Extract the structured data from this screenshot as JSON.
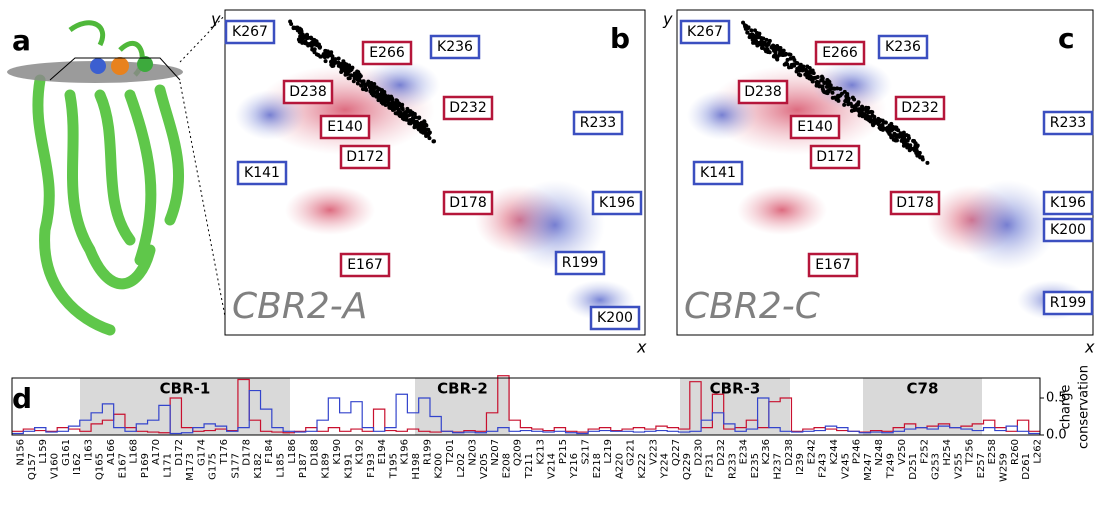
{
  "panel_a": {
    "label": "a"
  },
  "panel_b": {
    "label": "b",
    "name": "CBR2-A",
    "x_label": "x",
    "y_label": "y",
    "residues": [
      {
        "label": "K267",
        "color": "#3b4fc0"
      },
      {
        "label": "E266",
        "color": "#b5163a"
      },
      {
        "label": "K236",
        "color": "#3b4fc0"
      },
      {
        "label": "D238",
        "color": "#b5163a"
      },
      {
        "label": "D232",
        "color": "#b5163a"
      },
      {
        "label": "R233",
        "color": "#3b4fc0"
      },
      {
        "label": "E140",
        "color": "#b5163a"
      },
      {
        "label": "D172",
        "color": "#b5163a"
      },
      {
        "label": "K141",
        "color": "#3b4fc0"
      },
      {
        "label": "D178",
        "color": "#b5163a"
      },
      {
        "label": "K196",
        "color": "#3b4fc0"
      },
      {
        "label": "R199",
        "color": "#3b4fc0"
      },
      {
        "label": "E167",
        "color": "#b5163a"
      },
      {
        "label": "K200",
        "color": "#3b4fc0"
      }
    ]
  },
  "panel_c": {
    "label": "c",
    "name": "CBR2-C",
    "x_label": "x",
    "y_label": "y",
    "residues": [
      {
        "label": "K267",
        "color": "#3b4fc0"
      },
      {
        "label": "E266",
        "color": "#b5163a"
      },
      {
        "label": "K236",
        "color": "#3b4fc0"
      },
      {
        "label": "D238",
        "color": "#b5163a"
      },
      {
        "label": "D232",
        "color": "#b5163a"
      },
      {
        "label": "R233",
        "color": "#3b4fc0"
      },
      {
        "label": "E140",
        "color": "#b5163a"
      },
      {
        "label": "D172",
        "color": "#b5163a"
      },
      {
        "label": "K141",
        "color": "#3b4fc0"
      },
      {
        "label": "D178",
        "color": "#b5163a"
      },
      {
        "label": "K196",
        "color": "#3b4fc0"
      },
      {
        "label": "K200",
        "color": "#3b4fc0"
      },
      {
        "label": "E167",
        "color": "#b5163a"
      },
      {
        "label": "R199",
        "color": "#3b4fc0"
      }
    ]
  },
  "panel_d": {
    "label": "d",
    "regions": [
      "CBR-1",
      "CBR-2",
      "CBR-3",
      "C78"
    ],
    "y_label": [
      "charge",
      "conservation"
    ],
    "ylim": [
      0,
      0.77
    ],
    "yticks": [
      {
        "value": 0,
        "label": "0.0"
      },
      0.5
    ],
    "residues": [
      "N156",
      "Q157",
      "L159",
      "V160",
      "G161",
      "I162",
      "I163",
      "Q165",
      "A166",
      "E167",
      "L168",
      "P169",
      "A170",
      "L171",
      "D172",
      "M173",
      "G174",
      "G175",
      "T176",
      "S177",
      "D178",
      "K182",
      "F184",
      "L185",
      "L186",
      "P187",
      "D188",
      "K189",
      "K190",
      "K191",
      "K192",
      "F193",
      "E194",
      "T195",
      "K196",
      "H198",
      "R199",
      "K200",
      "T201",
      "L202",
      "N203",
      "V205",
      "N207",
      "E208",
      "Q209",
      "T211",
      "K213",
      "V214",
      "P215",
      "Y216",
      "S217",
      "E218",
      "L219",
      "A220",
      "G221",
      "K222",
      "V223",
      "Y224",
      "Q227",
      "Q229",
      "D230",
      "F231",
      "D232",
      "R233",
      "E234",
      "E235",
      "K236",
      "H237",
      "D238",
      "I239",
      "E242",
      "F243",
      "K244",
      "V245",
      "P246",
      "M247",
      "N248",
      "T249",
      "V250",
      "D251",
      "F252",
      "G253",
      "H254",
      "V255",
      "T256",
      "E257",
      "E258",
      "W259",
      "R260",
      "D261",
      "L262"
    ],
    "series": [
      {
        "color": "#c8102e",
        "values": [
          0.05,
          0.08,
          0.06,
          0.05,
          0.1,
          0.08,
          0.05,
          0.15,
          0.2,
          0.28,
          0.1,
          0.05,
          0.04,
          0.03,
          0.5,
          0.1,
          0.05,
          0.06,
          0.08,
          0.06,
          0.75,
          0.2,
          0.05,
          0.04,
          0.03,
          0.05,
          0.1,
          0.05,
          0.1,
          0.05,
          0.08,
          0.05,
          0.35,
          0.06,
          0.05,
          0.08,
          0.05,
          0.04,
          0.05,
          0.04,
          0.06,
          0.05,
          0.3,
          0.8,
          0.2,
          0.1,
          0.08,
          0.06,
          0.1,
          0.05,
          0.04,
          0.08,
          0.1,
          0.06,
          0.08,
          0.1,
          0.08,
          0.12,
          0.1,
          0.08,
          0.72,
          0.1,
          0.55,
          0.08,
          0.1,
          0.2,
          0.1,
          0.45,
          0.5,
          0.05,
          0.08,
          0.1,
          0.08,
          0.06,
          0.05,
          0.04,
          0.06,
          0.05,
          0.1,
          0.15,
          0.1,
          0.12,
          0.15,
          0.1,
          0.12,
          0.15,
          0.2,
          0.1,
          0.05,
          0.2,
          0.05
        ]
      },
      {
        "color": "#3344cc",
        "values": [
          0.02,
          0.05,
          0.1,
          0.04,
          0.05,
          0.12,
          0.2,
          0.3,
          0.42,
          0.1,
          0.05,
          0.15,
          0.2,
          0.4,
          0.02,
          0.03,
          0.1,
          0.15,
          0.12,
          0.05,
          0.1,
          0.6,
          0.35,
          0.1,
          0.05,
          0.04,
          0.05,
          0.2,
          0.5,
          0.3,
          0.45,
          0.1,
          0.05,
          0.1,
          0.55,
          0.3,
          0.5,
          0.25,
          0.05,
          0.03,
          0.04,
          0.03,
          0.05,
          0.1,
          0.05,
          0.06,
          0.05,
          0.04,
          0.05,
          0.03,
          0.02,
          0.05,
          0.06,
          0.05,
          0.05,
          0.04,
          0.05,
          0.06,
          0.05,
          0.04,
          0.05,
          0.2,
          0.3,
          0.15,
          0.05,
          0.08,
          0.5,
          0.1,
          0.05,
          0.04,
          0.05,
          0.06,
          0.12,
          0.1,
          0.05,
          0.03,
          0.04,
          0.03,
          0.05,
          0.08,
          0.1,
          0.08,
          0.12,
          0.1,
          0.08,
          0.06,
          0.1,
          0.06,
          0.12,
          0.05,
          0.02
        ]
      }
    ]
  }
}
